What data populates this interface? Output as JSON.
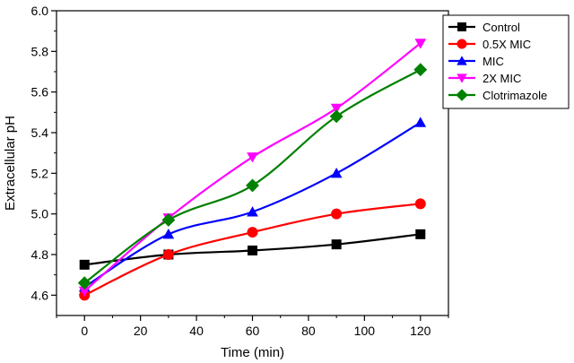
{
  "chart_data": {
    "type": "line",
    "title": "",
    "xlabel": "Time (min)",
    "ylabel": "Extracellular pH",
    "x": [
      0,
      30,
      60,
      90,
      120
    ],
    "xlim": [
      -10,
      130
    ],
    "ylim": [
      4.5,
      6.0
    ],
    "xticks": [
      0,
      20,
      40,
      60,
      80,
      100,
      120
    ],
    "yticks": [
      4.6,
      4.8,
      5.0,
      5.2,
      5.4,
      5.6,
      5.8,
      6.0
    ],
    "ytick_labels": [
      "4.6",
      "4.8",
      "5.0",
      "5.2",
      "5.4",
      "5.6",
      "5.8",
      "6.0"
    ],
    "grid": false,
    "legend_position": "top-right",
    "series": [
      {
        "name": "Control",
        "color": "#000000",
        "marker": "square",
        "values": [
          4.75,
          4.8,
          4.82,
          4.85,
          4.9
        ]
      },
      {
        "name": "0.5X MIC",
        "color": "#ff0000",
        "marker": "circle",
        "values": [
          4.6,
          4.8,
          4.91,
          5.0,
          5.05
        ]
      },
      {
        "name": "MIC",
        "color": "#0000ff",
        "marker": "triangle-up",
        "values": [
          4.64,
          4.9,
          5.01,
          5.2,
          5.45
        ]
      },
      {
        "name": "2X MIC",
        "color": "#ff00ff",
        "marker": "triangle-down",
        "values": [
          4.62,
          4.98,
          5.28,
          5.52,
          5.84
        ]
      },
      {
        "name": "Clotrimazole",
        "color": "#008000",
        "marker": "diamond",
        "values": [
          4.66,
          4.97,
          5.14,
          5.48,
          5.71
        ]
      }
    ]
  }
}
